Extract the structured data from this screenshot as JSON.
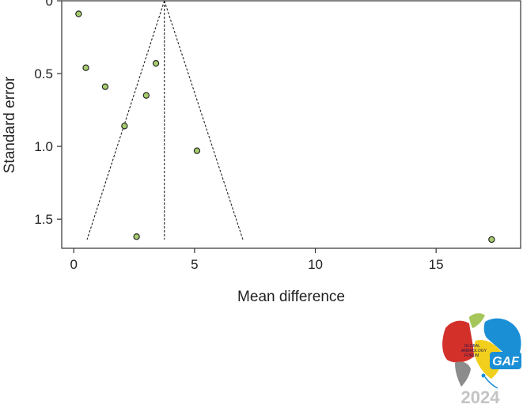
{
  "chart_data": {
    "type": "scatter",
    "subtype": "funnel-plot",
    "xlabel": "Mean difference",
    "ylabel": "Standard error",
    "xlim": [
      -0.5,
      18.5
    ],
    "ylim": [
      0,
      1.7
    ],
    "y_inverted": true,
    "xticks": [
      0,
      5,
      10,
      15
    ],
    "yticks": [
      0,
      0.5,
      1.0,
      1.5
    ],
    "xtick_labels": [
      "0",
      "5",
      "10",
      "15"
    ],
    "ytick_labels": [
      "0",
      "0.5",
      "1.0",
      "1.5"
    ],
    "pooled_estimate": 3.75,
    "funnel": {
      "apex": [
        3.75,
        0
      ],
      "base_se": 1.64,
      "base_left": 0.55,
      "base_right": 7.0
    },
    "points": [
      {
        "x": 0.2,
        "y": 0.09
      },
      {
        "x": 0.5,
        "y": 0.46
      },
      {
        "x": 1.3,
        "y": 0.59
      },
      {
        "x": 3.4,
        "y": 0.43
      },
      {
        "x": 3.0,
        "y": 0.65
      },
      {
        "x": 2.1,
        "y": 0.86
      },
      {
        "x": 5.1,
        "y": 1.03
      },
      {
        "x": 2.6,
        "y": 1.62
      },
      {
        "x": 17.3,
        "y": 1.64
      }
    ],
    "point_color": "#a6cc6e",
    "point_edge": "#1a1a1a",
    "grid": false,
    "legend": "none"
  },
  "logo": {
    "year": "2024",
    "lines": [
      "GLOBAL",
      "ANDROLOGY",
      "FORUM"
    ],
    "mark": "GAF",
    "colors": {
      "red": "#d3302a",
      "green": "#a5c65a",
      "blue": "#1b8fd6",
      "yellow": "#f2cf1c",
      "gray": "#8c8c8c"
    }
  }
}
